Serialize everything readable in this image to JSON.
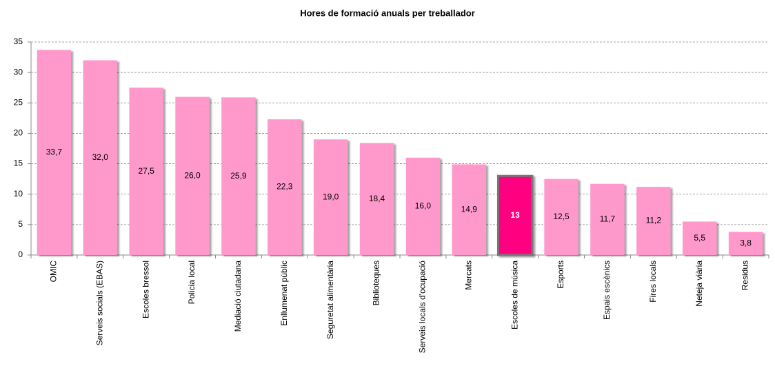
{
  "chart_data": {
    "type": "bar",
    "title": "Hores de formació anuals per treballador",
    "categories": [
      "OMIC",
      "Serveis socials (EBAS)",
      "Escoles bressol",
      "Policia local",
      "Mediació ciutadana",
      "Enllumenat públic",
      "Seguretat alimentària",
      "Biblioteques",
      "Serveis locals d'ocupació",
      "Mercats",
      "Escoles de música",
      "Esports",
      "Espais escènics",
      "Fires locals",
      "Neteja viària",
      "Residus"
    ],
    "values": [
      33.7,
      32.0,
      27.5,
      26.0,
      25.9,
      22.3,
      19.0,
      18.4,
      16.0,
      14.9,
      13,
      12.5,
      11.7,
      11.2,
      5.5,
      3.8
    ],
    "value_labels": [
      "33,7",
      "32,0",
      "27,5",
      "26,0",
      "25,9",
      "22,3",
      "19,0",
      "18,4",
      "16,0",
      "14,9",
      "13",
      "12,5",
      "11,7",
      "11,2",
      "5,5",
      "3,8"
    ],
    "colors": [
      "#ff99cc",
      "#ff99cc",
      "#ff99cc",
      "#ff99cc",
      "#ff99cc",
      "#ff99cc",
      "#ff99cc",
      "#ff99cc",
      "#ff99cc",
      "#ff99cc",
      "#ff0080",
      "#ff99cc",
      "#ff99cc",
      "#ff99cc",
      "#ff99cc",
      "#ff99cc"
    ],
    "ylim": [
      0,
      35
    ],
    "yticks": [
      0,
      5,
      10,
      15,
      20,
      25,
      30,
      35
    ],
    "grid": true
  }
}
